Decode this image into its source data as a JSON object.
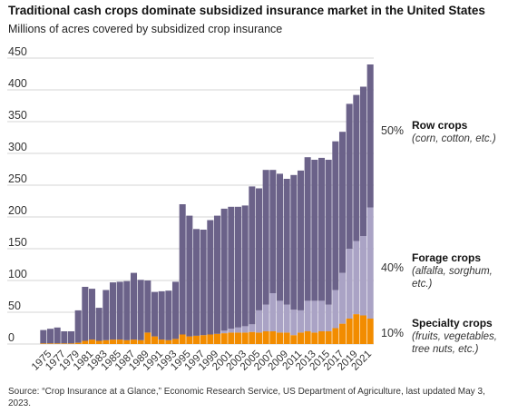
{
  "chart_data": {
    "type": "bar",
    "stacked": true,
    "title": "Traditional cash crops dominate subsidized insurance market in the United States",
    "subtitle": "Millions of acres covered by subsidized crop insurance",
    "source": "Source: “Crop Insurance at a Glance,” Economic Research Service, US Department of Agriculture, last updated May 3, 2023.",
    "ylim": [
      0,
      450
    ],
    "yticks": [
      0,
      50,
      100,
      150,
      200,
      250,
      300,
      350,
      400,
      450
    ],
    "grid": true,
    "categories": [
      1975,
      1976,
      1977,
      1978,
      1979,
      1980,
      1981,
      1982,
      1983,
      1984,
      1985,
      1986,
      1987,
      1988,
      1989,
      1990,
      1991,
      1992,
      1993,
      1994,
      1995,
      1996,
      1997,
      1998,
      1999,
      2000,
      2001,
      2002,
      2003,
      2004,
      2005,
      2006,
      2007,
      2008,
      2009,
      2010,
      2011,
      2012,
      2013,
      2014,
      2015,
      2016,
      2017,
      2018,
      2019,
      2020,
      2021,
      2022
    ],
    "xtick_labels": [
      "1975",
      "1977",
      "1979",
      "1981",
      "1983",
      "1985",
      "1987",
      "1989",
      "1991",
      "1993",
      "1995",
      "1997",
      "1999",
      "2001",
      "2003",
      "2005",
      "2007",
      "2009",
      "2011",
      "2013",
      "2015",
      "2017",
      "2019",
      "2021"
    ],
    "colors": {
      "row": "#6b6289",
      "forage": "#aaa3c5",
      "specialty": "#f28c00"
    },
    "series": [
      {
        "key": "specialty",
        "values": [
          1,
          1,
          1,
          1,
          1,
          2,
          5,
          7,
          5,
          6,
          7,
          7,
          6,
          7,
          6,
          18,
          12,
          7,
          6,
          8,
          15,
          12,
          13,
          14,
          15,
          16,
          17,
          18,
          18,
          18,
          19,
          18,
          20,
          20,
          18,
          18,
          14,
          18,
          20,
          18,
          20,
          20,
          25,
          32,
          40,
          47,
          45,
          40
        ]
      },
      {
        "key": "forage",
        "values": [
          0,
          0,
          0,
          0,
          0,
          0,
          0,
          0,
          0,
          0,
          0,
          0,
          0,
          0,
          0,
          0,
          0,
          0,
          0,
          0,
          0,
          0,
          0,
          0,
          0,
          0,
          4,
          6,
          8,
          10,
          12,
          35,
          42,
          60,
          50,
          44,
          40,
          35,
          48,
          50,
          48,
          42,
          60,
          80,
          110,
          115,
          125,
          175
        ]
      },
      {
        "key": "row",
        "values": [
          21,
          23,
          25,
          19,
          19,
          51,
          85,
          80,
          52,
          79,
          90,
          91,
          93,
          105,
          95,
          82,
          70,
          76,
          78,
          90,
          205,
          190,
          168,
          166,
          180,
          186,
          192,
          192,
          190,
          190,
          217,
          192,
          212,
          194,
          200,
          198,
          212,
          220,
          226,
          222,
          225,
          228,
          234,
          222,
          228,
          230,
          235,
          225
        ]
      }
    ],
    "annotations": [
      {
        "pct": "50%",
        "title": "Row crops",
        "subtitle_lines": [
          "(corn, cotton, etc.)"
        ]
      },
      {
        "pct": "40%",
        "title": "Forage crops",
        "subtitle_lines": [
          "(alfalfa, sorghum,",
          "etc.)"
        ]
      },
      {
        "pct": "10%",
        "title": "Specialty crops",
        "subtitle_lines": [
          "(fruits, vegetables,",
          "tree nuts, etc.)"
        ]
      }
    ]
  }
}
